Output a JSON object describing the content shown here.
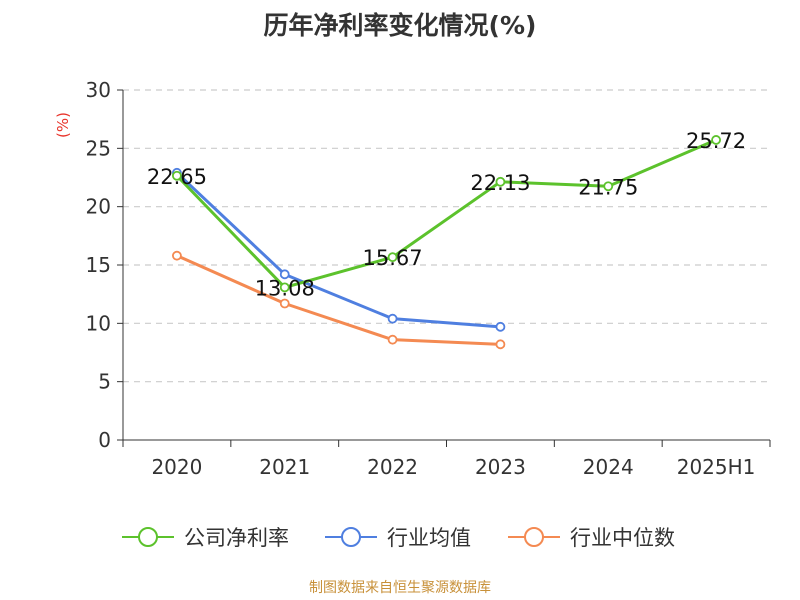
{
  "chart_data": {
    "type": "line",
    "title": "历年净利率变化情况(%)",
    "ylabel": "(%)",
    "ylim": [
      0,
      30
    ],
    "yticks": [
      0,
      5,
      10,
      15,
      20,
      25,
      30
    ],
    "categories": [
      "2020",
      "2021",
      "2022",
      "2023",
      "2024",
      "2025H1"
    ],
    "grid": true,
    "legend_position": "bottom",
    "series": [
      {
        "name": "公司净利率",
        "color": "#5cc22c",
        "values": [
          22.65,
          13.08,
          15.67,
          22.13,
          21.75,
          25.72
        ],
        "data_labels": [
          "22.65",
          "13.08",
          "15.67",
          "22.13",
          "21.75",
          "25.72"
        ]
      },
      {
        "name": "行业均值",
        "color": "#4f7fe0",
        "values": [
          22.9,
          14.2,
          10.4,
          9.7,
          null,
          null
        ]
      },
      {
        "name": "行业中位数",
        "color": "#f48a52",
        "values": [
          15.8,
          11.7,
          8.6,
          8.2,
          null,
          null
        ]
      }
    ]
  },
  "source": "制图数据来自恒生聚源数据库"
}
